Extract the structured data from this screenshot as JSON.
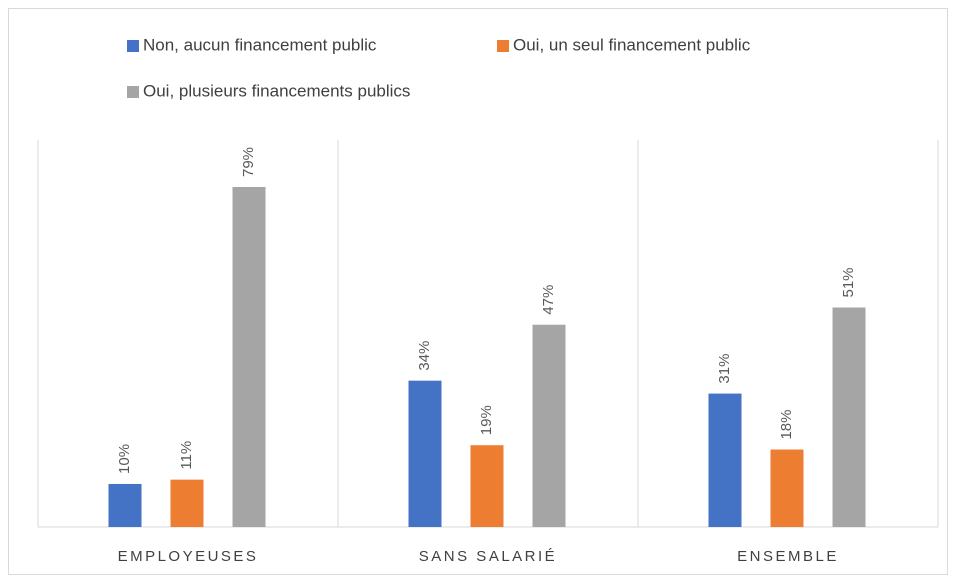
{
  "chart_data": {
    "type": "bar",
    "categories": [
      "EMPLOYEUSES",
      "SANS SALARIÉ",
      "ENSEMBLE"
    ],
    "series": [
      {
        "name": "Non, aucun financement public",
        "color": "#4472c4",
        "values": [
          10,
          34,
          31
        ],
        "value_labels": [
          "10%",
          "34%",
          "31%"
        ]
      },
      {
        "name": "Oui, un seul financement public",
        "color": "#ed7d31",
        "values": [
          11,
          19,
          18
        ],
        "value_labels": [
          "11%",
          "19%",
          "18%"
        ]
      },
      {
        "name": "Oui, plusieurs financements publics",
        "color": "#a5a5a5",
        "values": [
          79,
          47,
          51
        ],
        "value_labels": [
          "79%",
          "47%",
          "51%"
        ]
      }
    ],
    "legend": "top"
  }
}
